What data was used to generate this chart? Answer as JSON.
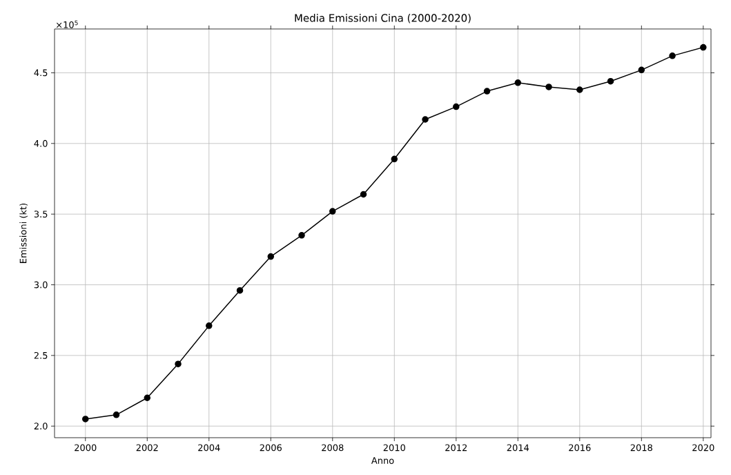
{
  "chart_data": {
    "type": "line",
    "title": "Media Emissioni Cina (2000-2020)",
    "xlabel": "Anno",
    "ylabel": "Emissioni (kt)",
    "annotations": [
      "×10$^{5}$"
    ],
    "x": [
      2000,
      2001,
      2002,
      2003,
      2004,
      2005,
      2006,
      2007,
      2008,
      2009,
      2010,
      2011,
      2012,
      2013,
      2014,
      2015,
      2016,
      2017,
      2018,
      2019,
      2020
    ],
    "series": [
      {
        "color": "#000000",
        "values": [
          2.05,
          2.08,
          2.2,
          2.44,
          2.71,
          2.96,
          3.2,
          3.35,
          3.52,
          3.64,
          3.89,
          4.17,
          4.26,
          4.37,
          4.43,
          4.4,
          4.38,
          4.44,
          4.52,
          4.62,
          4.68
        ]
      }
    ],
    "xlim": [
      1999,
      2020.25
    ],
    "ylim": [
      1.918,
      4.81
    ],
    "xticks": [
      2000,
      2002,
      2004,
      2006,
      2008,
      2010,
      2012,
      2014,
      2016,
      2018,
      2020
    ],
    "yticks": [
      {
        "value": 2,
        "label": "2.0"
      },
      2.5,
      {
        "value": 3,
        "label": "3.0"
      },
      3.5,
      {
        "value": 4,
        "label": "4.0"
      },
      4.5
    ],
    "grid": true,
    "marker": "circle",
    "line_style": "solid"
  }
}
